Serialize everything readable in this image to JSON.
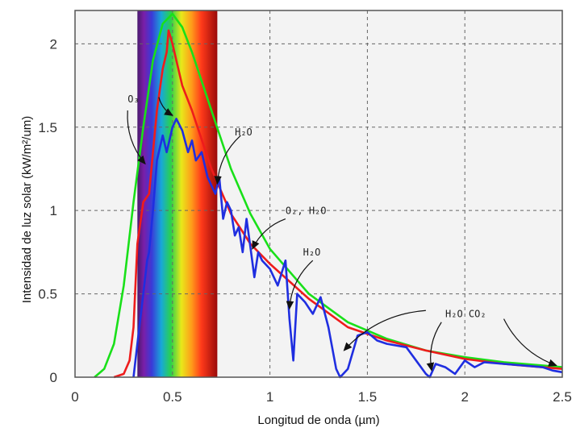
{
  "chart_data": {
    "type": "line",
    "xlabel": "Longitud de onda (µm)",
    "ylabel": "Intensidad de luz solar (kW/m²/um)",
    "xlim": [
      0,
      2.5
    ],
    "ylim": [
      0,
      2.2
    ],
    "x_ticks": [
      0,
      0.5,
      1,
      1.5,
      2,
      2.5
    ],
    "x_tick_labels": [
      "0",
      "0.5",
      "1",
      "1.5",
      "2",
      "2.5"
    ],
    "y_ticks": [
      0,
      0.5,
      1,
      1.5,
      2
    ],
    "y_tick_labels": [
      "0",
      "0.5",
      "1",
      "1.5",
      "2"
    ],
    "grid": true,
    "visible_band": {
      "x_start": 0.32,
      "x_end": 0.73
    },
    "series": [
      {
        "color": "#19e019",
        "x": [
          0.1,
          0.15,
          0.2,
          0.25,
          0.3,
          0.35,
          0.4,
          0.45,
          0.5,
          0.55,
          0.6,
          0.7,
          0.8,
          0.9,
          1.0,
          1.2,
          1.4,
          1.6,
          1.8,
          2.0,
          2.2,
          2.5
        ],
        "y": [
          0.0,
          0.05,
          0.2,
          0.55,
          1.05,
          1.5,
          1.9,
          2.12,
          2.18,
          2.1,
          1.95,
          1.6,
          1.25,
          0.98,
          0.77,
          0.5,
          0.33,
          0.23,
          0.16,
          0.12,
          0.09,
          0.06
        ]
      },
      {
        "color": "#ee1c1c",
        "x": [
          0.2,
          0.25,
          0.28,
          0.3,
          0.32,
          0.35,
          0.38,
          0.4,
          0.42,
          0.45,
          0.47,
          0.48,
          0.5,
          0.52,
          0.55,
          0.6,
          0.7,
          0.8,
          0.9,
          1.0,
          1.2,
          1.4,
          1.6,
          1.8,
          2.0,
          2.2,
          2.5
        ],
        "y": [
          0.0,
          0.02,
          0.1,
          0.3,
          0.8,
          1.05,
          1.1,
          1.35,
          1.6,
          1.85,
          1.95,
          2.08,
          2.0,
          1.9,
          1.75,
          1.6,
          1.25,
          0.98,
          0.8,
          0.68,
          0.47,
          0.3,
          0.22,
          0.16,
          0.11,
          0.08,
          0.05
        ]
      },
      {
        "color": "#1f2ee0",
        "x": [
          0.3,
          0.32,
          0.35,
          0.37,
          0.38,
          0.4,
          0.42,
          0.45,
          0.47,
          0.5,
          0.52,
          0.55,
          0.58,
          0.6,
          0.62,
          0.65,
          0.68,
          0.7,
          0.72,
          0.74,
          0.76,
          0.78,
          0.8,
          0.82,
          0.84,
          0.86,
          0.88,
          0.9,
          0.92,
          0.94,
          0.96,
          1.0,
          1.04,
          1.08,
          1.1,
          1.12,
          1.14,
          1.18,
          1.22,
          1.26,
          1.3,
          1.34,
          1.36,
          1.4,
          1.45,
          1.5,
          1.55,
          1.6,
          1.7,
          1.75,
          1.8,
          1.82,
          1.85,
          1.9,
          1.95,
          2.0,
          2.05,
          2.1,
          2.2,
          2.3,
          2.4,
          2.45,
          2.5
        ],
        "y": [
          0.0,
          0.2,
          0.5,
          0.7,
          0.75,
          1.0,
          1.3,
          1.45,
          1.35,
          1.5,
          1.55,
          1.48,
          1.35,
          1.42,
          1.3,
          1.35,
          1.2,
          1.15,
          1.1,
          1.2,
          0.95,
          1.05,
          1.0,
          0.85,
          0.9,
          0.75,
          0.95,
          0.78,
          0.6,
          0.75,
          0.7,
          0.65,
          0.55,
          0.7,
          0.35,
          0.1,
          0.5,
          0.45,
          0.38,
          0.48,
          0.3,
          0.05,
          0.0,
          0.05,
          0.25,
          0.27,
          0.22,
          0.2,
          0.18,
          0.1,
          0.02,
          0.0,
          0.08,
          0.06,
          0.02,
          0.1,
          0.06,
          0.09,
          0.08,
          0.07,
          0.06,
          0.04,
          0.03
        ]
      }
    ],
    "annotations": [
      {
        "text": "O₃",
        "x": 0.27,
        "y": 1.65
      },
      {
        "text": "H₂O",
        "x": 0.82,
        "y": 1.45
      },
      {
        "text": "O₂, H₂O",
        "x": 1.08,
        "y": 0.98
      },
      {
        "text": "H₂O",
        "x": 1.17,
        "y": 0.73
      },
      {
        "text": "H₂O  CO₂",
        "x": 1.9,
        "y": 0.36
      }
    ],
    "arrows": [
      {
        "from": [
          0.27,
          1.6
        ],
        "to": [
          0.36,
          1.28
        ]
      },
      {
        "from": [
          0.43,
          1.68
        ],
        "to": [
          0.5,
          1.57
        ]
      },
      {
        "from": [
          0.85,
          1.45
        ],
        "to": [
          0.73,
          1.16
        ]
      },
      {
        "from": [
          1.08,
          0.95
        ],
        "to": [
          0.91,
          0.77
        ]
      },
      {
        "from": [
          1.22,
          0.7
        ],
        "to": [
          1.1,
          0.41
        ]
      },
      {
        "from": [
          1.8,
          0.4
        ],
        "to": [
          1.38,
          0.16
        ]
      },
      {
        "from": [
          1.88,
          0.33
        ],
        "to": [
          1.83,
          0.04
        ]
      },
      {
        "from": [
          2.2,
          0.35
        ],
        "to": [
          2.47,
          0.07
        ]
      }
    ]
  }
}
